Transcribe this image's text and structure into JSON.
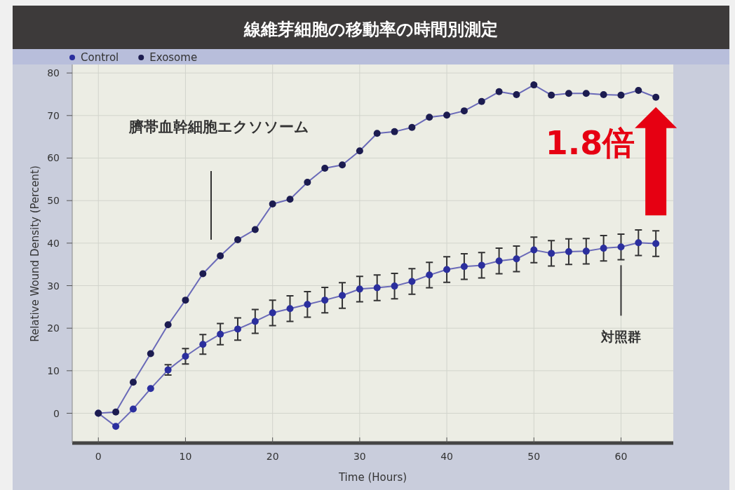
{
  "chart_data": {
    "type": "line",
    "title": "線維芽細胞の移動率の時間別測定",
    "xlabel": "Time (Hours)",
    "ylabel": "Relative Wound Density (Percent)",
    "x": [
      0,
      2,
      4,
      6,
      8,
      10,
      12,
      14,
      16,
      18,
      20,
      22,
      24,
      26,
      28,
      30,
      32,
      34,
      36,
      38,
      40,
      42,
      44,
      46,
      48,
      50,
      52,
      54,
      56,
      58,
      60,
      62,
      64
    ],
    "series": [
      {
        "name": "Control",
        "color": "#2b2f9e",
        "values": [
          0,
          -3.1,
          1.0,
          5.8,
          10.2,
          13.4,
          16.2,
          18.6,
          19.8,
          21.6,
          23.6,
          24.6,
          25.6,
          26.6,
          27.7,
          29.2,
          29.5,
          29.9,
          31.0,
          32.5,
          33.8,
          34.5,
          34.8,
          35.8,
          36.3,
          38.4,
          37.6,
          38.0,
          38.1,
          38.8,
          39.1,
          40.1,
          39.9
        ],
        "errors": [
          null,
          null,
          null,
          null,
          1.2,
          1.8,
          2.3,
          2.5,
          2.6,
          2.8,
          3,
          3,
          3,
          3,
          3,
          3,
          3,
          3,
          3,
          3,
          3,
          3,
          3,
          3,
          3,
          3,
          3,
          3,
          3,
          3,
          3,
          3,
          3
        ]
      },
      {
        "name": "Exosome",
        "color": "#1c1c50",
        "values": [
          0,
          0.3,
          7.3,
          14.0,
          20.8,
          26.6,
          32.8,
          37.0,
          40.8,
          43.2,
          49.2,
          50.3,
          54.3,
          57.6,
          58.4,
          61.7,
          65.8,
          66.2,
          67.2,
          69.6,
          70.1,
          71.1,
          73.3,
          75.6,
          74.9,
          77.2,
          74.8,
          75.2,
          75.2,
          74.9,
          74.8,
          75.9,
          74.3
        ]
      }
    ],
    "xlim": [
      -3,
      66
    ],
    "ylim": [
      -7,
      82
    ],
    "xticks": [
      0,
      10,
      20,
      30,
      40,
      50,
      60
    ],
    "yticks": [
      0,
      10,
      20,
      30,
      40,
      50,
      60,
      70,
      80
    ],
    "grid": true,
    "legend": "top left",
    "marker": "circle",
    "annotations": [
      "臍帯血幹細胞エクソソーム",
      "1.8倍",
      {
        "text": "対照群",
        "x": 60,
        "y": 35.3
      }
    ]
  }
}
